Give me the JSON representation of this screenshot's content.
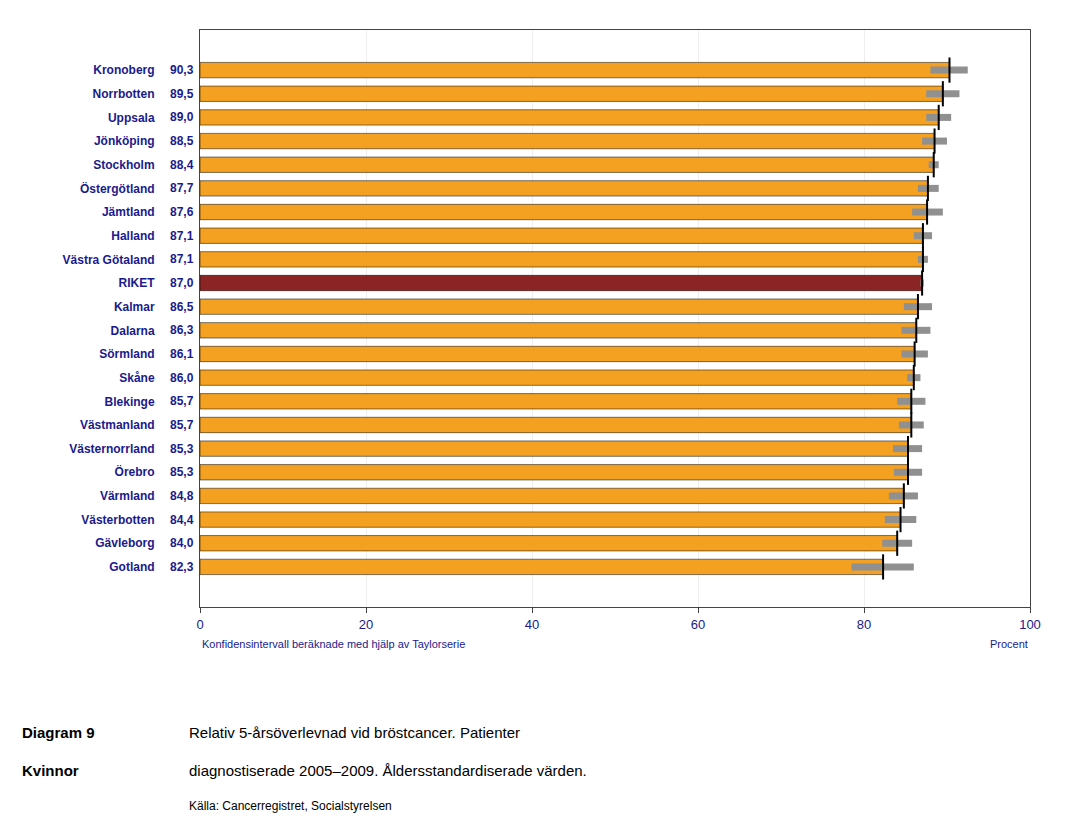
{
  "chart_data": {
    "type": "bar",
    "orientation": "horizontal",
    "categories": [
      "Kronoberg",
      "Norrbotten",
      "Uppsala",
      "Jönköping",
      "Stockholm",
      "Östergötland",
      "Jämtland",
      "Halland",
      "Västra Götaland",
      "RIKET",
      "Kalmar",
      "Dalarna",
      "Sörmland",
      "Skåne",
      "Blekinge",
      "Västmanland",
      "Västernorrland",
      "Örebro",
      "Värmland",
      "Västerbotten",
      "Gävleborg",
      "Gotland"
    ],
    "values": [
      90.3,
      89.5,
      89.0,
      88.5,
      88.4,
      87.7,
      87.6,
      87.1,
      87.1,
      87.0,
      86.5,
      86.3,
      86.1,
      86.0,
      85.7,
      85.7,
      85.3,
      85.3,
      84.8,
      84.4,
      84.0,
      82.3
    ],
    "value_labels": [
      "90,3",
      "89,5",
      "89,0",
      "88,5",
      "88,4",
      "87,7",
      "87,6",
      "87,1",
      "87,1",
      "87,0",
      "86,5",
      "86,3",
      "86,1",
      "86,0",
      "85,7",
      "85,7",
      "85,3",
      "85,3",
      "84,8",
      "84,4",
      "84,0",
      "82,3"
    ],
    "data_labels": true,
    "ci_low": [
      88.0,
      87.5,
      87.5,
      87.0,
      87.8,
      86.5,
      85.8,
      86.0,
      86.5,
      86.8,
      84.8,
      84.5,
      84.5,
      85.2,
      84.0,
      84.2,
      83.5,
      83.6,
      83.0,
      82.5,
      82.2,
      78.5
    ],
    "ci_high": [
      92.5,
      91.5,
      90.5,
      90.0,
      89.0,
      89.0,
      89.5,
      88.2,
      87.7,
      87.2,
      88.2,
      88.0,
      87.7,
      86.8,
      87.4,
      87.2,
      87.0,
      87.0,
      86.5,
      86.3,
      85.8,
      86.0
    ],
    "colors": [
      "#F4A020",
      "#F4A020",
      "#F4A020",
      "#F4A020",
      "#F4A020",
      "#F4A020",
      "#F4A020",
      "#F4A020",
      "#F4A020",
      "#8B2525",
      "#F4A020",
      "#F4A020",
      "#F4A020",
      "#F4A020",
      "#F4A020",
      "#F4A020",
      "#F4A020",
      "#F4A020",
      "#F4A020",
      "#F4A020",
      "#F4A020",
      "#F4A020"
    ],
    "xlim": [
      0,
      100
    ],
    "xticks": [
      0,
      20,
      40,
      60,
      80,
      100
    ],
    "grid": true,
    "xlabel": "Procent",
    "annotations": [
      "Diagram 9",
      "Kvinnor",
      "Relativ 5-årsöverlevnad vid bröstcancer. Patienter",
      "diagnostiserade 2005–2009. Åldersstandardiserade värden.",
      "Källa: Cancerregistret, Socialstyrelsen",
      "Konfidensintervall beräknade med hjälp av Taylorserie"
    ]
  }
}
